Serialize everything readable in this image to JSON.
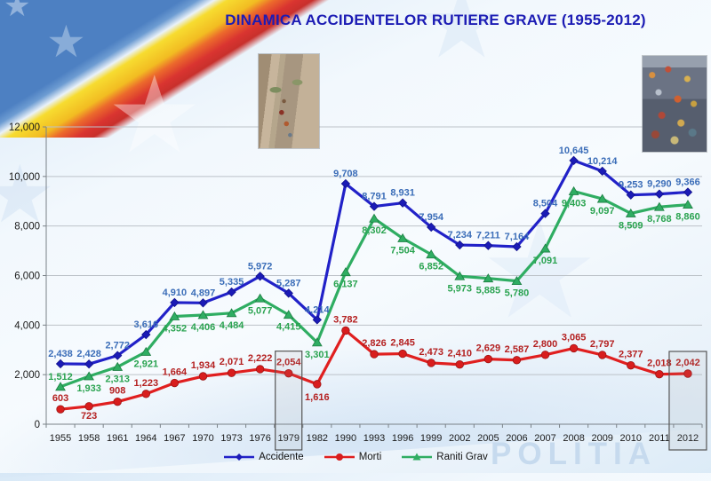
{
  "header": {
    "title": "DINAMICA ACCIDENTELOR RUTIERE GRAVE  (1955-2012)"
  },
  "watermark": "POLITIA",
  "chart_data": {
    "type": "line",
    "title": "DINAMICA ACCIDENTELOR RUTIERE GRAVE (1955-2012)",
    "categories": [
      "1955",
      "1958",
      "1961",
      "1964",
      "1967",
      "1970",
      "1973",
      "1976",
      "1979",
      "1982",
      "1990",
      "1993",
      "1996",
      "1999",
      "2002",
      "2005",
      "2006",
      "2007",
      "2008",
      "2009",
      "2010",
      "2011",
      "2012"
    ],
    "series": [
      {
        "name": "Accidente",
        "marker": "diamond",
        "color": "#2121c8",
        "marker_color": "#1b1bb6",
        "label_color": "#3b6db8",
        "values": [
          2438,
          2428,
          2772,
          3616,
          4910,
          4897,
          5335,
          5972,
          5287,
          4214,
          9708,
          8791,
          8931,
          7954,
          7234,
          7211,
          7164,
          8504,
          10645,
          10214,
          9253,
          9290,
          9366
        ]
      },
      {
        "name": "Morti",
        "marker": "circle",
        "color": "#e01f1f",
        "marker_color": "#d81d1d",
        "label_color": "#b42020",
        "values": [
          603,
          723,
          908,
          1223,
          1664,
          1934,
          2071,
          2222,
          2054,
          1616,
          3782,
          2826,
          2845,
          2473,
          2410,
          2629,
          2587,
          2800,
          3065,
          2797,
          2377,
          2018,
          2042
        ]
      },
      {
        "name": "Raniti Grav",
        "marker": "triangle",
        "color": "#2fad62",
        "marker_color": "#2fad62",
        "label_color": "#2aa350",
        "values": [
          1512,
          1933,
          2313,
          2921,
          4352,
          4406,
          4484,
          5077,
          4415,
          3301,
          6137,
          8302,
          7504,
          6852,
          5973,
          5885,
          5780,
          7091,
          9403,
          9097,
          8509,
          8768,
          8860
        ]
      }
    ],
    "ylim": [
      0,
      12000
    ],
    "ytick_interval": 2000,
    "ytick_labels": [
      "0",
      "2,000",
      "4,000",
      "6,000",
      "8,000",
      "10,000",
      "12,000"
    ],
    "grid": true,
    "legend_position": "bottom",
    "highlighted_categories": [
      "1979",
      "2012"
    ]
  }
}
